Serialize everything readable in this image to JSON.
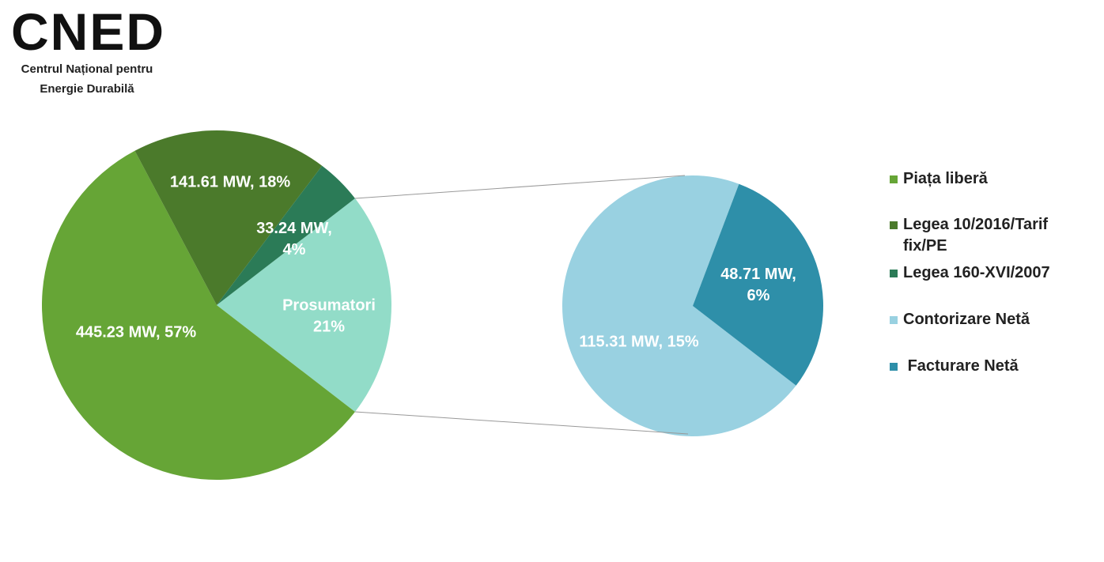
{
  "logo": {
    "mark": "CNED",
    "name_lines": [
      "Centrul Național pentru",
      "Energie Durabilă"
    ]
  },
  "chart_data": {
    "type": "pie-of-pie",
    "pies": [
      {
        "categories": [
          "Piața liberă",
          "Legea 10/2016/Tarif fix/PE",
          "Legea 160-XVI/2007"
        ],
        "values": [
          445.23,
          141.61,
          33.24
        ],
        "value_labels": [
          "445.23 MW, 57%",
          "141.61 MW, 18%",
          "33.24 MW, 4%"
        ],
        "colors": [
          "#66a536",
          "#4b7a2b",
          "#2b7b57"
        ]
      },
      {
        "categories": [
          "Contorizare Netă",
          " Facturare Netă"
        ],
        "values": [
          115.31,
          48.71
        ],
        "value_labels": [
          "115.31 MW, 15%",
          "48.71 MW, 6%"
        ],
        "colors": [
          "#99d1e1",
          "#2e8fa9"
        ]
      }
    ],
    "other": {
      "name": "Prosumatori",
      "value_label": "21%",
      "color": "#92dcc8"
    },
    "legend": "right"
  }
}
